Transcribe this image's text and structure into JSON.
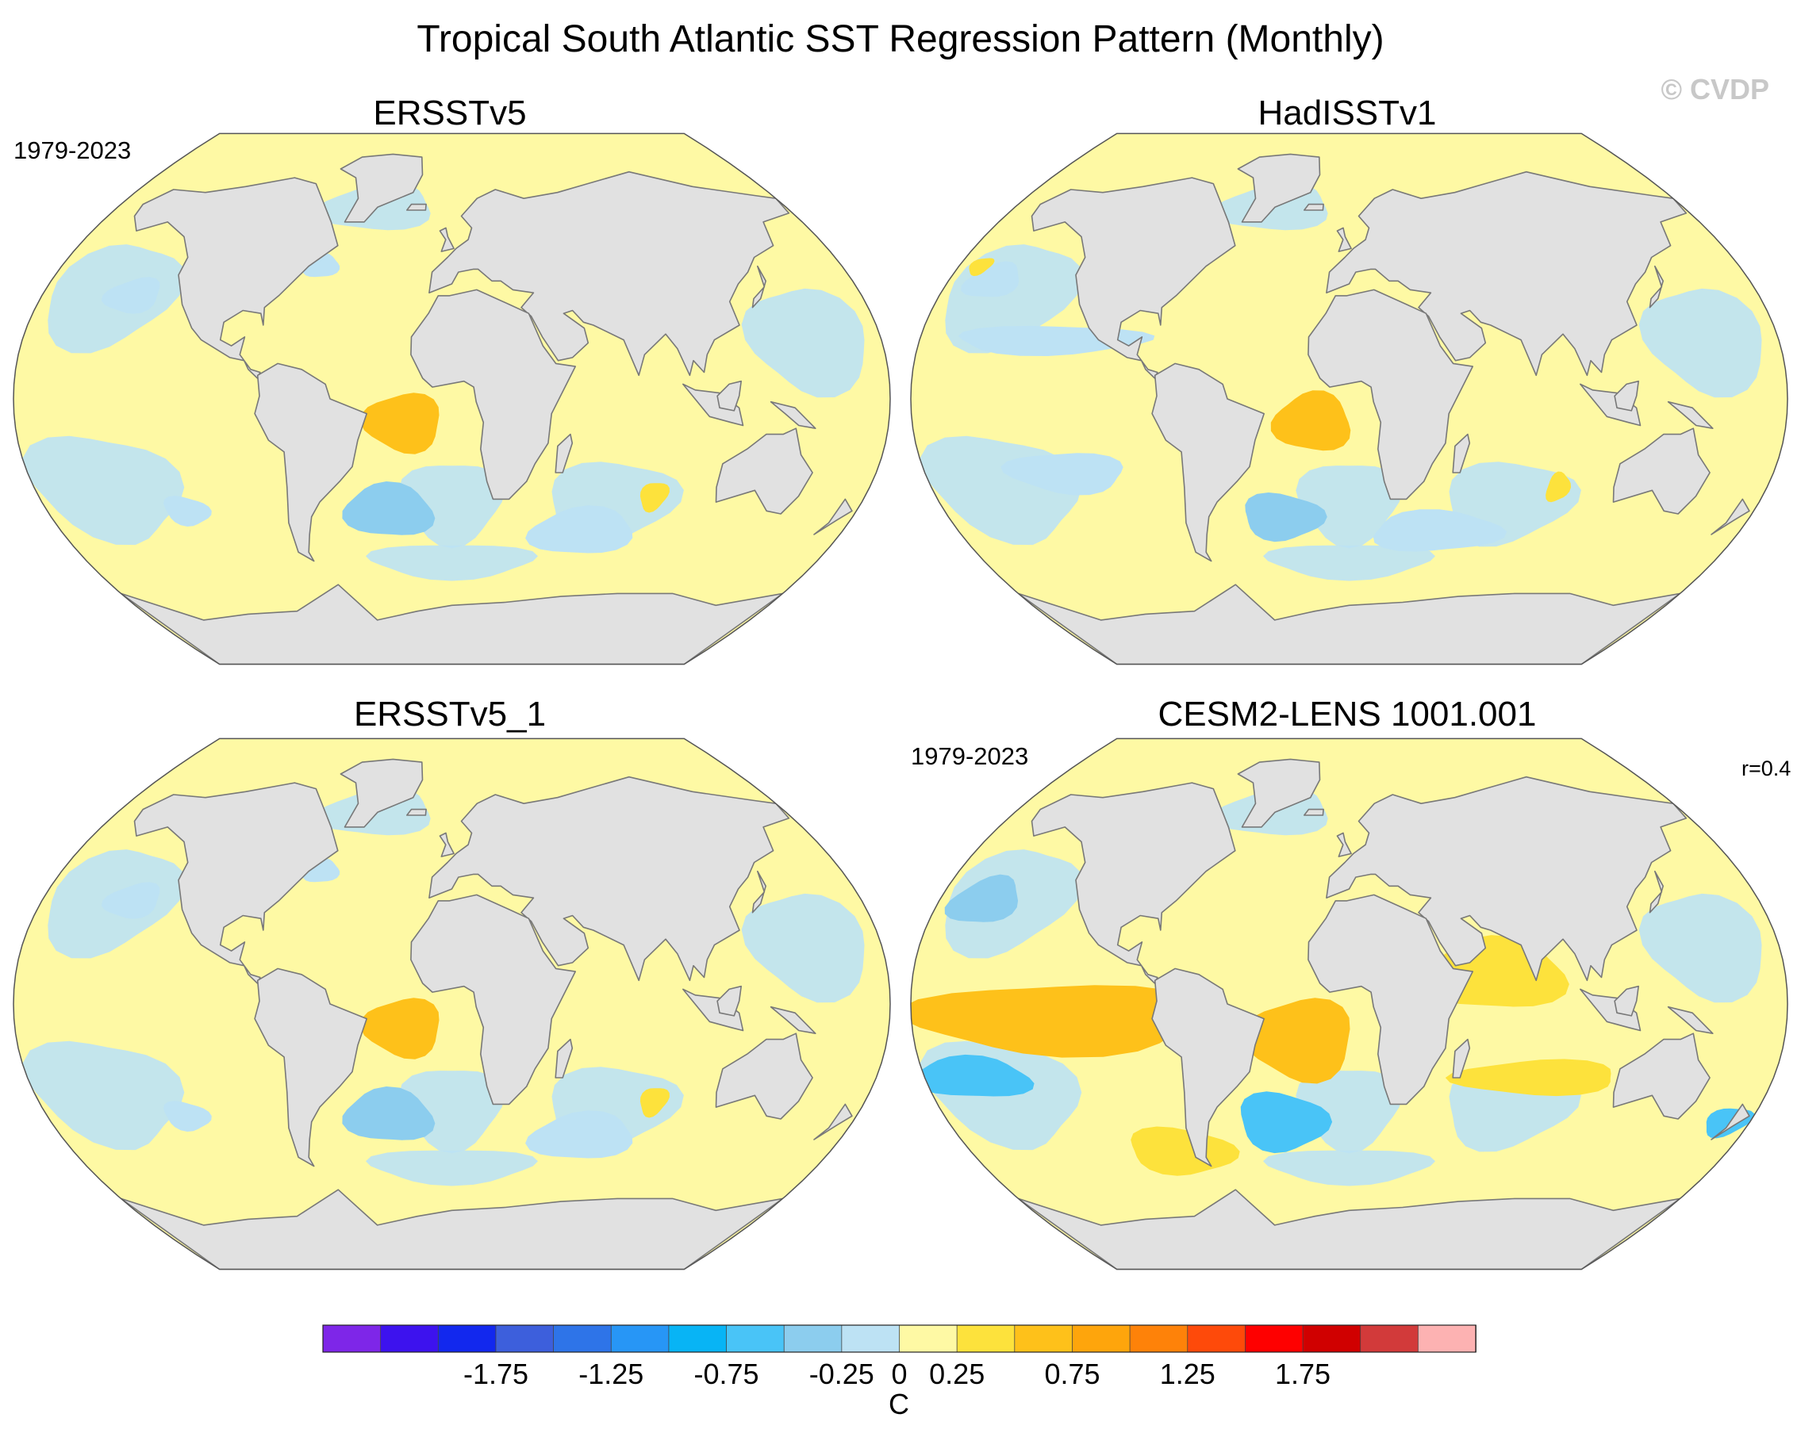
{
  "title": "Tropical South Atlantic SST Regression Pattern (Monthly)",
  "copyright": "© CVDP",
  "colors": {
    "land": "#e1e1e1",
    "coast": "#787878",
    "neutral": "#d9d9e6",
    "levels": [
      "#7e26e8",
      "#3d12ee",
      "#1228ee",
      "#3d5fdc",
      "#2e74e8",
      "#2796f6",
      "#08b4f5",
      "#49c4f7",
      "#8ccdee",
      "#bde2f4",
      "#fef9a4",
      "#fde23c",
      "#fec11a",
      "#fea50c",
      "#fe8209",
      "#fe4a0a",
      "#fe0000",
      "#d00000",
      "#d23a3a",
      "#fdb2b2"
    ]
  },
  "chart_data": [
    {
      "type": "heatmap",
      "projection": "robinson",
      "title": "ERSSTv5",
      "period": "1979-2023",
      "features": [
        {
          "lon": -20,
          "lat": -8,
          "rx": 16,
          "ry": 10,
          "level": 12
        },
        {
          "lon": -28,
          "lat": -38,
          "rx": 20,
          "ry": 9,
          "level": 8
        },
        {
          "lon": 88,
          "lat": -33,
          "rx": 6,
          "ry": 5,
          "level": 11
        },
        {
          "lon": -140,
          "lat": 35,
          "rx": 12,
          "ry": 6,
          "level": 9
        },
        {
          "lon": -118,
          "lat": -38,
          "rx": 10,
          "ry": 5,
          "level": 9
        },
        {
          "lon": -60,
          "lat": 45,
          "rx": 8,
          "ry": 4,
          "level": 9
        },
        {
          "lon": 60,
          "lat": -45,
          "rx": 24,
          "ry": 8,
          "level": 9
        }
      ]
    },
    {
      "type": "heatmap",
      "projection": "robinson",
      "title": "HadISSTv1",
      "period": "",
      "features": [
        {
          "lon": -15,
          "lat": -8,
          "rx": 16,
          "ry": 10,
          "level": 12
        },
        {
          "lon": -30,
          "lat": -40,
          "rx": 18,
          "ry": 8,
          "level": 8
        },
        {
          "lon": 90,
          "lat": -30,
          "rx": 5,
          "ry": 5,
          "level": 11
        },
        {
          "lon": -125,
          "lat": 20,
          "rx": 40,
          "ry": 5,
          "level": 9
        },
        {
          "lon": -160,
          "lat": 40,
          "rx": 12,
          "ry": 6,
          "level": 9
        },
        {
          "lon": -120,
          "lat": -25,
          "rx": 25,
          "ry": 7,
          "level": 9
        },
        {
          "lon": 40,
          "lat": -45,
          "rx": 30,
          "ry": 7,
          "level": 9
        },
        {
          "lon": -170,
          "lat": 45,
          "rx": 5,
          "ry": 3,
          "level": 11
        }
      ]
    },
    {
      "type": "heatmap",
      "projection": "robinson",
      "title": "ERSSTv5_1",
      "period": "",
      "features": [
        {
          "lon": -20,
          "lat": -8,
          "rx": 16,
          "ry": 10,
          "level": 12
        },
        {
          "lon": -28,
          "lat": -38,
          "rx": 20,
          "ry": 9,
          "level": 8
        },
        {
          "lon": 88,
          "lat": -33,
          "rx": 6,
          "ry": 5,
          "level": 11
        },
        {
          "lon": -140,
          "lat": 35,
          "rx": 12,
          "ry": 6,
          "level": 9
        },
        {
          "lon": -118,
          "lat": -38,
          "rx": 10,
          "ry": 5,
          "level": 9
        },
        {
          "lon": -60,
          "lat": 45,
          "rx": 8,
          "ry": 4,
          "level": 9
        },
        {
          "lon": 60,
          "lat": -45,
          "rx": 24,
          "ry": 8,
          "level": 9
        }
      ]
    },
    {
      "type": "heatmap",
      "projection": "robinson",
      "title": "CESM2-LENS 1001.001",
      "period": "1979-2023",
      "pattern_correlation": "r=0.4",
      "features": [
        {
          "lon": -120,
          "lat": -5,
          "rx": 60,
          "ry": 12,
          "level": 12
        },
        {
          "lon": -20,
          "lat": -12,
          "rx": 22,
          "ry": 14,
          "level": 12
        },
        {
          "lon": 60,
          "lat": 10,
          "rx": 30,
          "ry": 12,
          "level": 11
        },
        {
          "lon": 80,
          "lat": -25,
          "rx": 35,
          "ry": 6,
          "level": 11
        },
        {
          "lon": -80,
          "lat": -50,
          "rx": 25,
          "ry": 8,
          "level": 11
        },
        {
          "lon": -30,
          "lat": -40,
          "rx": 20,
          "ry": 10,
          "level": 7
        },
        {
          "lon": -160,
          "lat": -25,
          "rx": 25,
          "ry": 7,
          "level": 7
        },
        {
          "lon": -160,
          "lat": 35,
          "rx": 15,
          "ry": 8,
          "level": 8
        },
        {
          "lon": 170,
          "lat": -40,
          "rx": 10,
          "ry": 5,
          "level": 7
        }
      ]
    }
  ],
  "colorbar": {
    "unit": "C",
    "min": -2.5,
    "max": 2.5,
    "step": 0.25,
    "levels": [
      -2.5,
      -2.25,
      -2,
      -1.75,
      -1.5,
      -1.25,
      -1,
      -0.75,
      -0.5,
      -0.25,
      0,
      0.25,
      0.5,
      0.75,
      1,
      1.25,
      1.5,
      1.75,
      2,
      2.25,
      2.5
    ],
    "tick_labels": [
      {
        "value": -1.75,
        "label": "-1.75"
      },
      {
        "value": -1.25,
        "label": "-1.25"
      },
      {
        "value": -0.75,
        "label": "-0.75"
      },
      {
        "value": -0.25,
        "label": "-0.25"
      },
      {
        "value": 0,
        "label": "0"
      },
      {
        "value": 0.25,
        "label": "0.25"
      },
      {
        "value": 0.75,
        "label": "0.75"
      },
      {
        "value": 1.25,
        "label": "1.25"
      },
      {
        "value": 1.75,
        "label": "1.75"
      }
    ]
  }
}
